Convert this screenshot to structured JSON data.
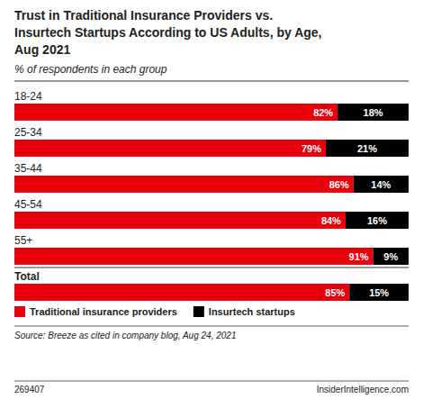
{
  "chart_data": {
    "type": "bar",
    "orientation": "horizontal",
    "stacked": true,
    "data_labels": true,
    "tick_labels": false,
    "grid": false,
    "legend": "bottom",
    "title": "Trust in Traditional Insurance Providers vs.\nInsurtech Startups According to US Adults, by Age,\nAug 2021",
    "subtitle": "% of respondents in each group",
    "source": "Source: Breeze as cited in company blog, Aug 24, 2021",
    "footnote": "269407",
    "watermark": "InsiderIntelligence.com",
    "categories": [
      "18-24",
      "25-34",
      "35-44",
      "45-54",
      "55+",
      "Total"
    ],
    "xlim": [
      0,
      100
    ],
    "series": [
      {
        "name": "Traditional insurance providers",
        "color": "#e8000d",
        "values": [
          82,
          79,
          86,
          84,
          91,
          85
        ],
        "value_labels": [
          "82%",
          "79%",
          "86%",
          "84%",
          "91%",
          "85%"
        ]
      },
      {
        "name": "Insurtech startups",
        "color": "#000000",
        "values": [
          18,
          21,
          14,
          16,
          9,
          15
        ],
        "value_labels": [
          "18%",
          "21%",
          "14%",
          "16%",
          "9%",
          "15%"
        ]
      }
    ]
  }
}
